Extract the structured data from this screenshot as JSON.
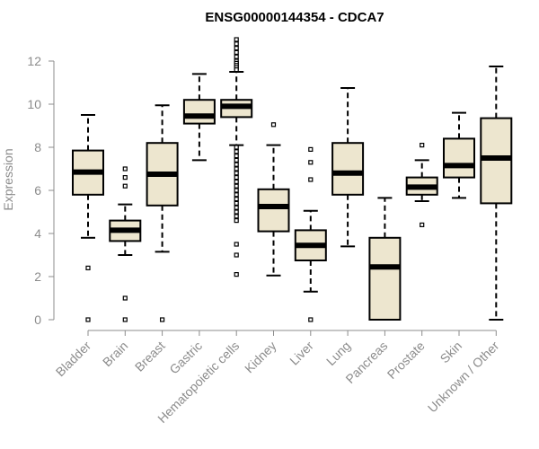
{
  "chart_data": {
    "type": "boxplot",
    "title": "ENSG00000144354 - CDCA7",
    "xlabel": "",
    "ylabel": "Expression",
    "ylim": [
      0,
      12
    ],
    "yticks": [
      0,
      2,
      4,
      6,
      8,
      10,
      12
    ],
    "box_fill": "#ede6cf",
    "box_stroke": "#000000",
    "axis_color": "#8c8c8c",
    "categories": [
      "Bladder",
      "Brain",
      "Breast",
      "Gastric",
      "Hematopoietic cells",
      "Kidney",
      "Liver",
      "Lung",
      "Pancreas",
      "Prostate",
      "Skin",
      "Unknown / Other"
    ],
    "boxes": [
      {
        "category": "Bladder",
        "min": 3.8,
        "q1": 5.8,
        "median": 6.85,
        "q3": 7.85,
        "max": 9.5,
        "outliers": [
          2.4,
          0.0
        ]
      },
      {
        "category": "Brain",
        "min": 3.0,
        "q1": 3.65,
        "median": 4.15,
        "q3": 4.6,
        "max": 5.35,
        "outliers": [
          7.0,
          6.6,
          6.2,
          1.0,
          0.0
        ]
      },
      {
        "category": "Breast",
        "min": 3.15,
        "q1": 5.3,
        "median": 6.75,
        "q3": 8.2,
        "max": 9.95,
        "outliers": [
          0.0
        ]
      },
      {
        "category": "Gastric",
        "min": 7.4,
        "q1": 9.1,
        "median": 9.45,
        "q3": 10.2,
        "max": 11.4,
        "outliers": []
      },
      {
        "category": "Hematopoietic cells",
        "min": 8.1,
        "q1": 9.4,
        "median": 9.9,
        "q3": 10.2,
        "max": 11.5,
        "outliers": [
          13.0,
          12.8,
          12.6,
          12.4,
          12.2,
          12.0,
          11.9,
          11.8,
          11.7,
          11.6,
          8.0,
          7.8,
          7.6,
          7.4,
          7.2,
          7.0,
          6.8,
          6.6,
          6.4,
          6.2,
          6.0,
          5.8,
          5.6,
          5.4,
          5.2,
          5.0,
          4.8,
          4.6,
          3.5,
          3.0,
          2.1
        ]
      },
      {
        "category": "Kidney",
        "min": 2.05,
        "q1": 4.1,
        "median": 5.25,
        "q3": 6.05,
        "max": 8.1,
        "outliers": [
          9.05
        ]
      },
      {
        "category": "Liver",
        "min": 1.3,
        "q1": 2.75,
        "median": 3.45,
        "q3": 4.15,
        "max": 5.05,
        "outliers": [
          7.9,
          7.3,
          6.5,
          0.0
        ]
      },
      {
        "category": "Lung",
        "min": 3.4,
        "q1": 5.8,
        "median": 6.8,
        "q3": 8.2,
        "max": 10.75,
        "outliers": []
      },
      {
        "category": "Pancreas",
        "min": 0.0,
        "q1": 0.0,
        "median": 2.45,
        "q3": 3.8,
        "max": 5.65,
        "outliers": []
      },
      {
        "category": "Prostate",
        "min": 5.5,
        "q1": 5.8,
        "median": 6.15,
        "q3": 6.6,
        "max": 7.4,
        "outliers": [
          8.1,
          4.4
        ]
      },
      {
        "category": "Skin",
        "min": 5.65,
        "q1": 6.6,
        "median": 7.15,
        "q3": 8.4,
        "max": 9.6,
        "outliers": []
      },
      {
        "category": "Unknown / Other",
        "min": 0.0,
        "q1": 5.4,
        "median": 7.5,
        "q3": 9.35,
        "max": 11.75,
        "outliers": []
      }
    ]
  }
}
